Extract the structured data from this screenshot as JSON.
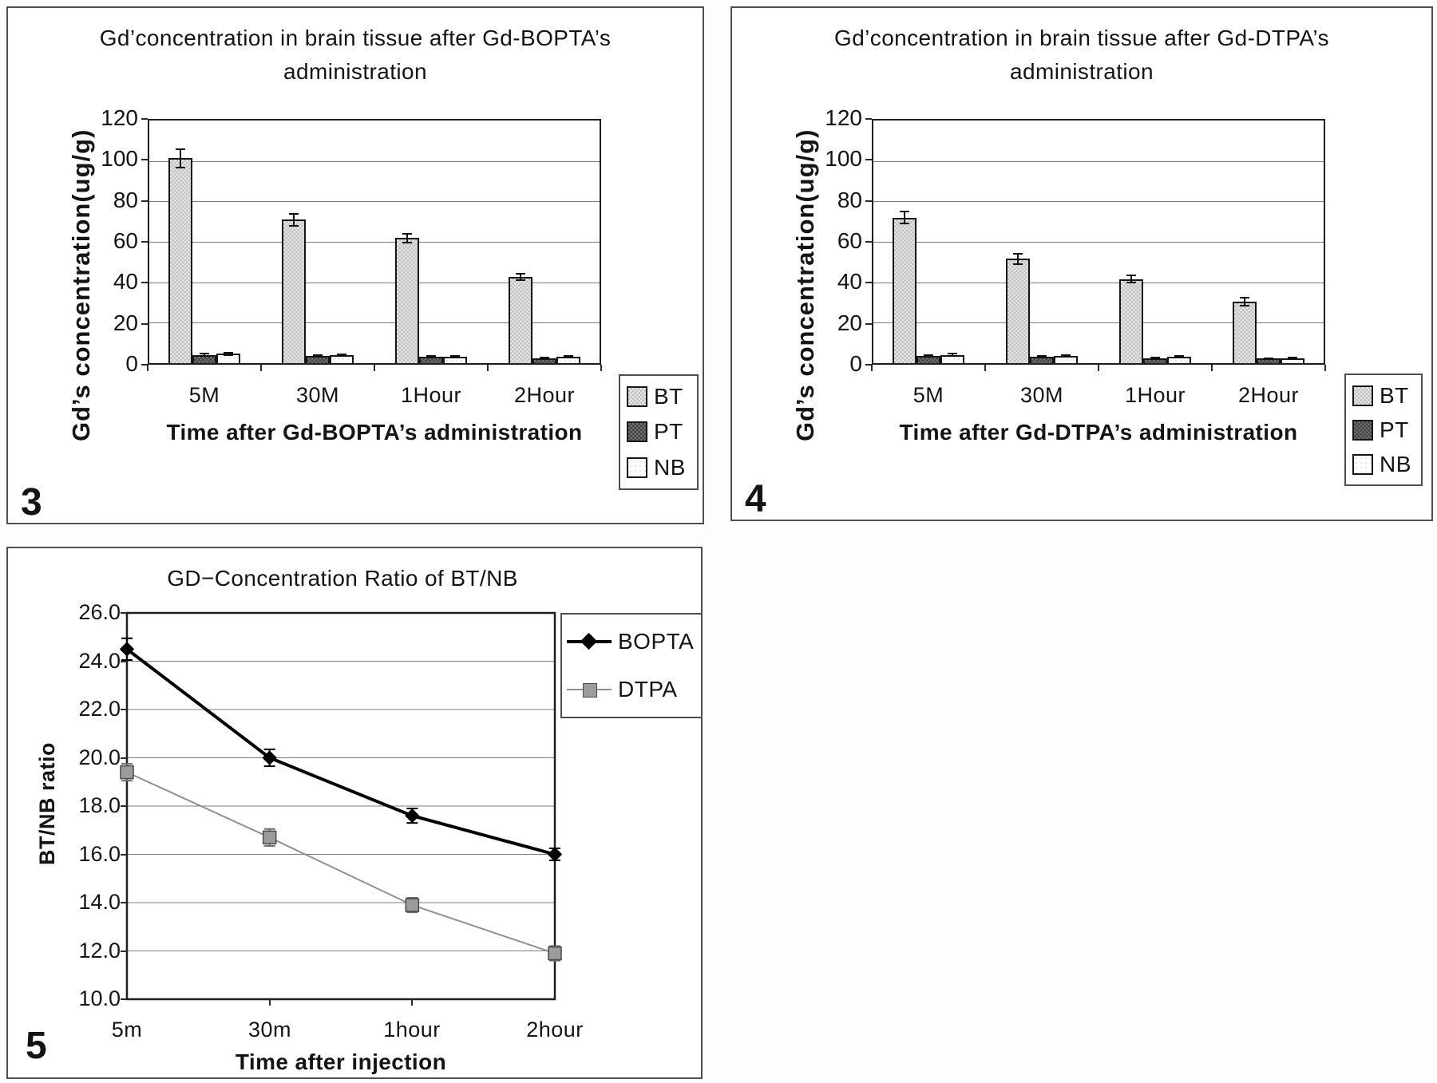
{
  "page": {
    "background": "#ffffff"
  },
  "chart_data": [
    {
      "id": "fig3",
      "figure_label": "3",
      "type": "bar",
      "title": "Gd’concentration in brain tissue after Gd-BOPTA’s administration",
      "title_lines": [
        "Gd’concentration in brain tissue after Gd-BOPTA’s",
        "administration"
      ],
      "xlabel": "Time after Gd-BOPTA’s administration",
      "ylabel": "Gd’s concentration(ug/g)",
      "categories": [
        "5M",
        "30M",
        "1Hour",
        "2Hour"
      ],
      "series": [
        {
          "name": "BT",
          "fill": "bt",
          "color": "#cfcfcf",
          "values": [
            100,
            70,
            61,
            42
          ],
          "errors": [
            4.5,
            2.8,
            2.0,
            1.5
          ]
        },
        {
          "name": "PT",
          "fill": "pt",
          "color": "#595959",
          "values": [
            4.0,
            3.6,
            3.2,
            2.5
          ],
          "errors": [
            0.5,
            0.4,
            0.4,
            0.4
          ]
        },
        {
          "name": "NB",
          "fill": "nb",
          "color": "#ffffff",
          "values": [
            4.5,
            3.9,
            3.3,
            3.0
          ],
          "errors": [
            0.6,
            0.5,
            0.4,
            0.4
          ]
        }
      ],
      "ylim": [
        0,
        120
      ],
      "ytick_step": 20,
      "ytick_labels": [
        "0",
        "20",
        "40",
        "60",
        "80",
        "100",
        "120"
      ],
      "grid": true,
      "legend_position": "outside-right-below"
    },
    {
      "id": "fig4",
      "figure_label": "4",
      "type": "bar",
      "title": "Gd’concentration in brain tissue after Gd-DTPA’s administration",
      "title_lines": [
        "Gd’concentration in brain tissue after Gd-DTPA’s",
        "administration"
      ],
      "xlabel": "Time after Gd-DTPA’s administration",
      "ylabel": "Gd’s concentration(ug/g)",
      "categories": [
        "5M",
        "30M",
        "1Hour",
        "2Hour"
      ],
      "series": [
        {
          "name": "BT",
          "fill": "bt",
          "color": "#cfcfcf",
          "values": [
            71,
            51,
            41,
            30
          ],
          "errors": [
            3.0,
            2.5,
            1.8,
            2.0
          ]
        },
        {
          "name": "PT",
          "fill": "pt",
          "color": "#595959",
          "values": [
            3.5,
            3.0,
            2.5,
            2.2
          ],
          "errors": [
            0.4,
            0.4,
            0.4,
            0.3
          ]
        },
        {
          "name": "NB",
          "fill": "nb",
          "color": "#ffffff",
          "values": [
            4.0,
            3.4,
            3.0,
            2.5
          ],
          "errors": [
            0.5,
            0.4,
            0.4,
            0.3
          ]
        }
      ],
      "ylim": [
        0,
        120
      ],
      "ytick_step": 20,
      "ytick_labels": [
        "0",
        "20",
        "40",
        "60",
        "80",
        "100",
        "120"
      ],
      "grid": true,
      "legend_position": "outside-right-below"
    },
    {
      "id": "fig5",
      "figure_label": "5",
      "type": "line",
      "title": "GD−Concentration Ratio of BT/NB",
      "xlabel": "Time after injection",
      "ylabel": "BT/NB ratio",
      "categories": [
        "5m",
        "30m",
        "1hour",
        "2hour"
      ],
      "series": [
        {
          "name": "BOPTA",
          "marker": "diamond",
          "color": "#000000",
          "line_width": 4,
          "values": [
            24.5,
            20.0,
            17.6,
            16.0
          ],
          "errors": [
            0.45,
            0.35,
            0.3,
            0.25
          ]
        },
        {
          "name": "DTPA",
          "marker": "square",
          "color": "#909090",
          "line_width": 2,
          "values": [
            19.4,
            16.7,
            13.9,
            11.9
          ],
          "errors": [
            0.35,
            0.35,
            0.3,
            0.3
          ]
        }
      ],
      "ylim": [
        10,
        26
      ],
      "ytick_step": 2,
      "ytick_labels": [
        "10.0",
        "12.0",
        "14.0",
        "16.0",
        "18.0",
        "20.0",
        "22.0",
        "24.0",
        "26.0"
      ],
      "grid": true,
      "legend_position": "inside-top-right"
    }
  ]
}
